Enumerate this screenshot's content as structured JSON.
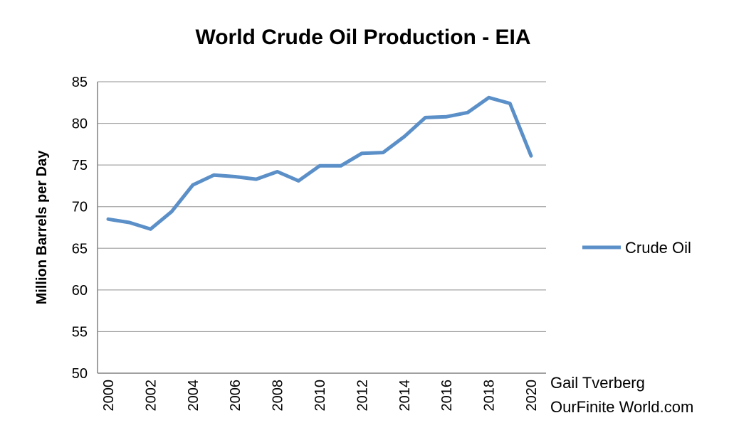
{
  "colors": {
    "series": "#5b8fc8",
    "grid": "#a6a6a6",
    "axis": "#808080"
  },
  "credit": {
    "line1": "Gail Tverberg",
    "line2": "OurFinite World.com"
  },
  "chart_data": {
    "type": "line",
    "title": "World Crude Oil Production - EIA",
    "ylabel": "Million Barrels per Day",
    "xlabel": "",
    "ylim": [
      50,
      85
    ],
    "yticks": [
      50,
      55,
      60,
      65,
      70,
      75,
      80,
      85
    ],
    "x": [
      2000,
      2001,
      2002,
      2003,
      2004,
      2005,
      2006,
      2007,
      2008,
      2009,
      2010,
      2011,
      2012,
      2013,
      2014,
      2015,
      2016,
      2017,
      2018,
      2019,
      2020
    ],
    "xtick_labels": [
      "2000",
      "2002",
      "2004",
      "2006",
      "2008",
      "2010",
      "2012",
      "2014",
      "2016",
      "2018",
      "2020"
    ],
    "grid": true,
    "legend": "right",
    "series": [
      {
        "name": "Crude Oil",
        "values": [
          68.5,
          68.1,
          67.3,
          69.4,
          72.6,
          73.8,
          73.6,
          73.3,
          74.2,
          73.1,
          74.9,
          74.9,
          76.4,
          76.5,
          78.4,
          80.7,
          80.8,
          81.3,
          83.1,
          82.4,
          76.1
        ]
      }
    ]
  }
}
